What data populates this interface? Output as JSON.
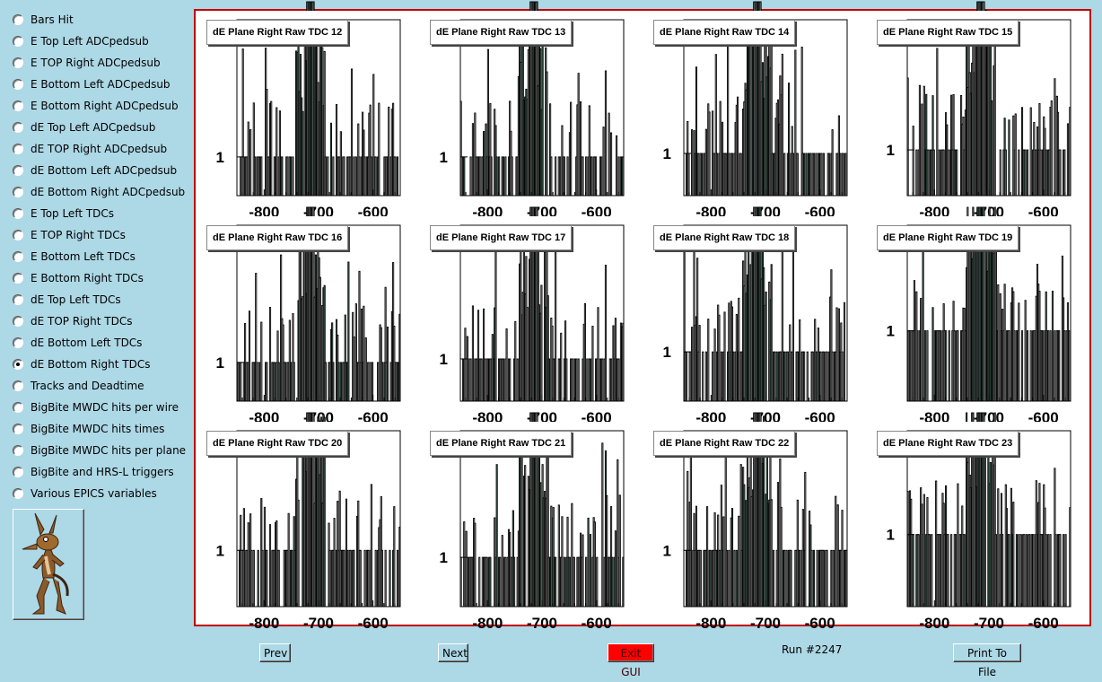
{
  "sidebar": {
    "items": [
      {
        "label": "Bars Hit",
        "selected": false
      },
      {
        "label": "E Top Left ADCpedsub",
        "selected": false
      },
      {
        "label": "E TOP Right ADCpedsub",
        "selected": false
      },
      {
        "label": "E Bottom Left ADCpedsub",
        "selected": false
      },
      {
        "label": "E Bottom Right ADCpedsub",
        "selected": false
      },
      {
        "label": "dE Top Left ADCpedsub",
        "selected": false
      },
      {
        "label": "dE TOP Right ADCpedsub",
        "selected": false
      },
      {
        "label": "dE Bottom Left ADCpedsub",
        "selected": false
      },
      {
        "label": "dE Bottom Right ADCpedsub",
        "selected": false
      },
      {
        "label": "E Top Left TDCs",
        "selected": false
      },
      {
        "label": "E TOP Right TDCs",
        "selected": false
      },
      {
        "label": "E Bottom Left TDCs",
        "selected": false
      },
      {
        "label": "E Bottom Right TDCs",
        "selected": false
      },
      {
        "label": "dE Top Left TDCs",
        "selected": false
      },
      {
        "label": "dE TOP Right TDCs",
        "selected": false
      },
      {
        "label": "dE Bottom Left TDCs",
        "selected": false
      },
      {
        "label": "dE Bottom Right TDCs",
        "selected": true
      },
      {
        "label": "Tracks and Deadtime",
        "selected": false
      },
      {
        "label": "BigBite MWDC hits per wire",
        "selected": false
      },
      {
        "label": "BigBite MWDC hits times",
        "selected": false
      },
      {
        "label": "BigBite MWDC hits per plane",
        "selected": false
      },
      {
        "label": "BigBite and HRS-L triggers",
        "selected": false
      },
      {
        "label": "Various EPICS variables",
        "selected": false
      }
    ],
    "logo_icon": "cartoon-coyote-icon"
  },
  "chart_data": [
    {
      "type": "bar",
      "title": "dE Plane Right Raw TDC 12",
      "xticks": [
        "-800",
        "-700",
        "-600"
      ],
      "xlim": [
        -850,
        -550
      ],
      "yscale": "log",
      "yticks": [
        "1"
      ],
      "ypos": 0.78
    },
    {
      "type": "bar",
      "title": "dE Plane Right Raw TDC 13",
      "xticks": [
        "-800",
        "-700",
        "-600"
      ],
      "xlim": [
        -850,
        -550
      ],
      "yscale": "log",
      "yticks": [
        "1"
      ],
      "ypos": 0.78
    },
    {
      "type": "bar",
      "title": "dE Plane Right Raw TDC 14",
      "xticks": [
        "-800",
        "-700",
        "-600"
      ],
      "xlim": [
        -850,
        -550
      ],
      "yscale": "log",
      "yticks": [
        "1"
      ],
      "ypos": 0.76
    },
    {
      "type": "bar",
      "title": "dE Plane Right Raw TDC 15",
      "xticks": [
        "-800",
        "-700",
        "-600"
      ],
      "xlim": [
        -850,
        -550
      ],
      "yscale": "log",
      "yticks": [
        "1"
      ],
      "ypos": 0.74
    },
    {
      "type": "bar",
      "title": "dE Plane Right Raw TDC 16",
      "xticks": [
        "-800",
        "-700",
        "-600"
      ],
      "xlim": [
        -850,
        -550
      ],
      "yscale": "log",
      "yticks": [
        "1"
      ],
      "ypos": 0.78
    },
    {
      "type": "bar",
      "title": "dE Plane Right Raw TDC 17",
      "xticks": [
        "-800",
        "-700",
        "-600"
      ],
      "xlim": [
        -850,
        -550
      ],
      "yscale": "log",
      "yticks": [
        "1"
      ],
      "ypos": 0.76
    },
    {
      "type": "bar",
      "title": "dE Plane Right Raw TDC 18",
      "xticks": [
        "-800",
        "-700",
        "-600"
      ],
      "xlim": [
        -850,
        -550
      ],
      "yscale": "log",
      "yticks": [
        "1"
      ],
      "ypos": 0.72
    },
    {
      "type": "bar",
      "title": "dE Plane Right Raw TDC 19",
      "xticks": [
        "-800",
        "-700",
        "-600"
      ],
      "xlim": [
        -850,
        -550
      ],
      "yscale": "log",
      "yticks": [
        "1"
      ],
      "ypos": 0.6
    },
    {
      "type": "bar",
      "title": "dE Plane Right Raw TDC 20",
      "xticks": [
        "-800",
        "-700",
        "-600"
      ],
      "xlim": [
        -850,
        -550
      ],
      "yscale": "log",
      "yticks": [
        "1"
      ],
      "ypos": 0.68
    },
    {
      "type": "bar",
      "title": "dE Plane Right Raw TDC 21",
      "xticks": [
        "-800",
        "-700",
        "-600"
      ],
      "xlim": [
        -850,
        -550
      ],
      "yscale": "log",
      "yticks": [
        "1"
      ],
      "ypos": 0.72
    },
    {
      "type": "bar",
      "title": "dE Plane Right Raw TDC 22",
      "xticks": [
        "-800",
        "-700",
        "-600"
      ],
      "xlim": [
        -850,
        -550
      ],
      "yscale": "log",
      "yticks": [
        "1"
      ],
      "ypos": 0.68
    },
    {
      "type": "bar",
      "title": "dE Plane Right Raw TDC 23",
      "xticks": [
        "-800",
        "-700",
        "-600"
      ],
      "xlim": [
        -850,
        -550
      ],
      "yscale": "log",
      "yticks": [
        "1"
      ],
      "ypos": 0.59
    }
  ],
  "buttons": {
    "prev": "Prev",
    "next": "Next",
    "exit": "Exit GUI",
    "print": "Print To File"
  },
  "run_label": "Run #2247",
  "colors": {
    "background": "#add8e6",
    "frame": "#c00000",
    "exit": "#ff0000",
    "fill": "#7fb89f"
  }
}
